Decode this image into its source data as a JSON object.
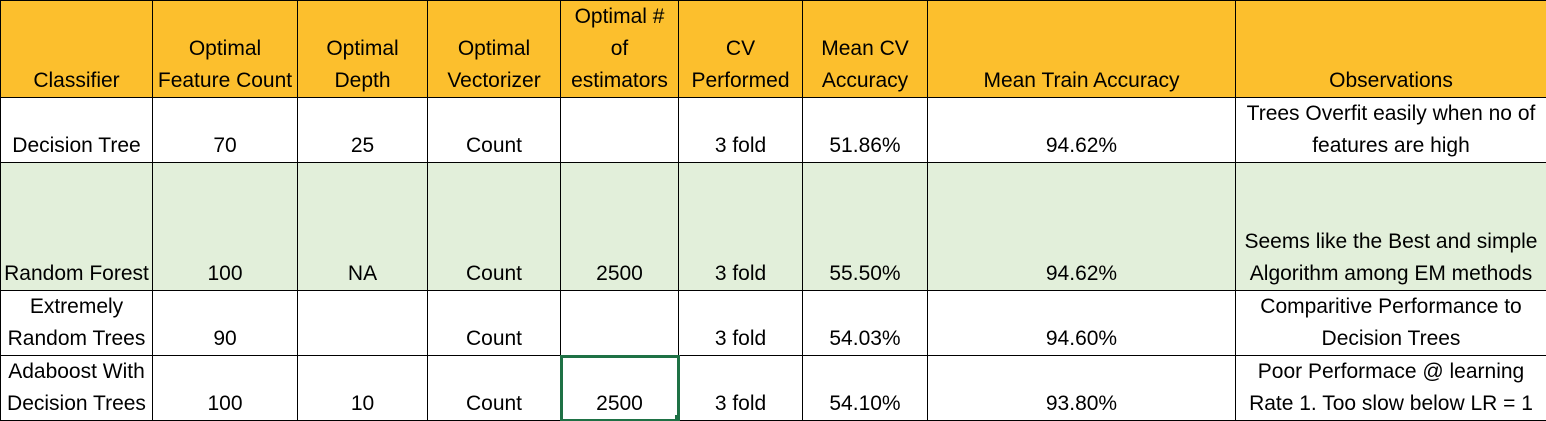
{
  "headers": {
    "classifier": "Classifier",
    "feature_count": "Optimal Feature Count",
    "depth": "Optimal Depth",
    "vectorizer": "Optimal Vectorizer",
    "estimators": "Optimal # of estimators",
    "cv": "CV Performed",
    "mean_cv": "Mean CV Accuracy",
    "mean_train": "Mean Train Accuracy",
    "observations": "Observations"
  },
  "rows": [
    {
      "classifier": "Decision Tree",
      "feature_count": "70",
      "depth": "25",
      "vectorizer": "Count",
      "estimators": "",
      "cv": "3 fold",
      "mean_cv": "51.86%",
      "mean_train": "94.62%",
      "observations": "Trees Overfit easily when no of features are high"
    },
    {
      "classifier": "Random Forest",
      "feature_count": "100",
      "depth": "NA",
      "vectorizer": "Count",
      "estimators": "2500",
      "cv": "3 fold",
      "mean_cv": "55.50%",
      "mean_train": "94.62%",
      "observations": "Seems like the Best and simple Algorithm among EM methods"
    },
    {
      "classifier": "Extremely Random Trees",
      "feature_count": "90",
      "depth": "",
      "vectorizer": "Count",
      "estimators": "",
      "cv": "3 fold",
      "mean_cv": "54.03%",
      "mean_train": "94.60%",
      "observations": "Comparitive Performance to Decision Trees"
    },
    {
      "classifier": "Adaboost With Decision Trees",
      "feature_count": "100",
      "depth": "10",
      "vectorizer": "Count",
      "estimators": "2500",
      "cv": "3 fold",
      "mean_cv": "54.10%",
      "mean_train": "93.80%",
      "observations": "Poor Performace @ learning Rate 1. Too slow below LR = 1"
    }
  ],
  "colors": {
    "header_bg": "#fcbf2d",
    "highlight_row_bg": "#e2efda",
    "selection_border": "#1e7145"
  }
}
